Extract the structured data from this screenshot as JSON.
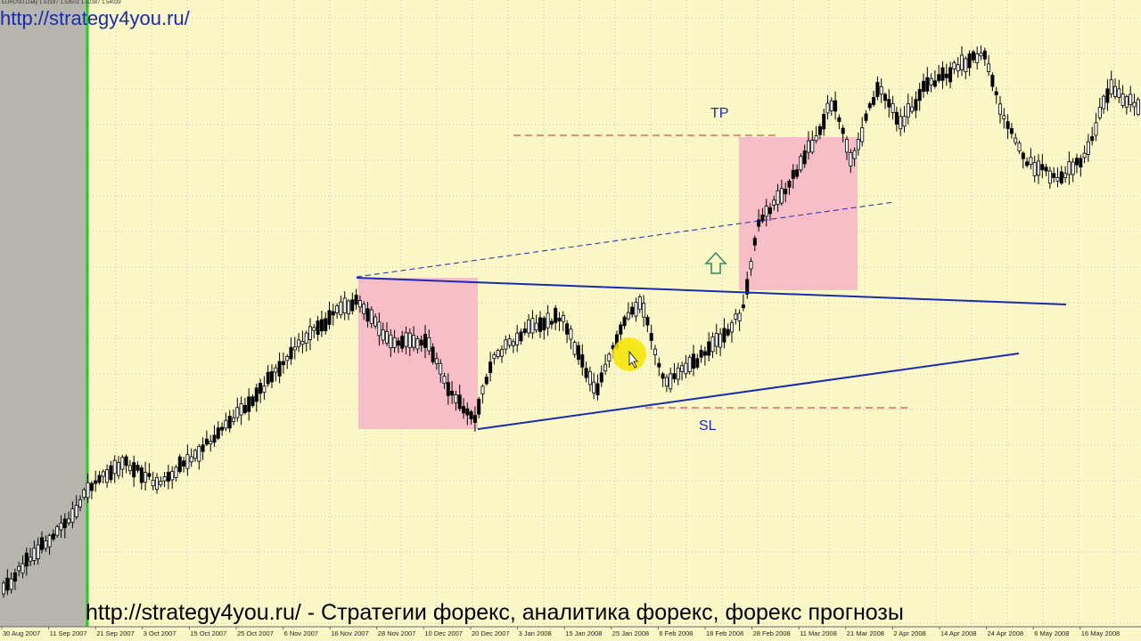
{
  "header": {
    "symbol_info": "EURUSD,Daily  1.53197 1.53502 1.52387 1.54039",
    "watermark_url": "http://strategy4you.ru/"
  },
  "footer": {
    "banner": "http://strategy4you.ru/ - Стратегии форекс, аналитика форекс, форекс прогнозы"
  },
  "colors": {
    "background": "#fbf7c6",
    "grid": "#c9c6b0",
    "candle_up": "#ffffff",
    "candle_down": "#000000",
    "trendline": "#1a2bb0",
    "level_dashed": "#d9534f",
    "zone_fill": "#f7b7c8",
    "cursor_highlight": "#f4e400",
    "arrow": "#2e8b57",
    "history_mask": "#a9a9a9",
    "separator": "#22cc22"
  },
  "chart_data": {
    "type": "candlestick",
    "symbol": "EURUSD",
    "timeframe": "Daily",
    "x_tick_labels": [
      "30 Aug 2007",
      "11 Sep 2007",
      "21 Sep 2007",
      "3 Oct 2007",
      "15 Oct 2007",
      "25 Oct 2007",
      "6 Nov 2007",
      "16 Nov 2007",
      "28 Nov 2007",
      "10 Dec 2007",
      "20 Dec 2007",
      "3 Jan 2008",
      "15 Jan 2008",
      "25 Jan 2008",
      "6 Feb 2008",
      "18 Feb 2008",
      "28 Feb 2008",
      "11 Mar 2008",
      "21 Mar 2008",
      "2 Apr 2008",
      "14 Apr 2008",
      "24 Apr 2008",
      "6 May 2008",
      "16 May 2008"
    ],
    "annotations": {
      "take_profit": "TP",
      "stop_loss": "SL"
    },
    "grid": true
  }
}
